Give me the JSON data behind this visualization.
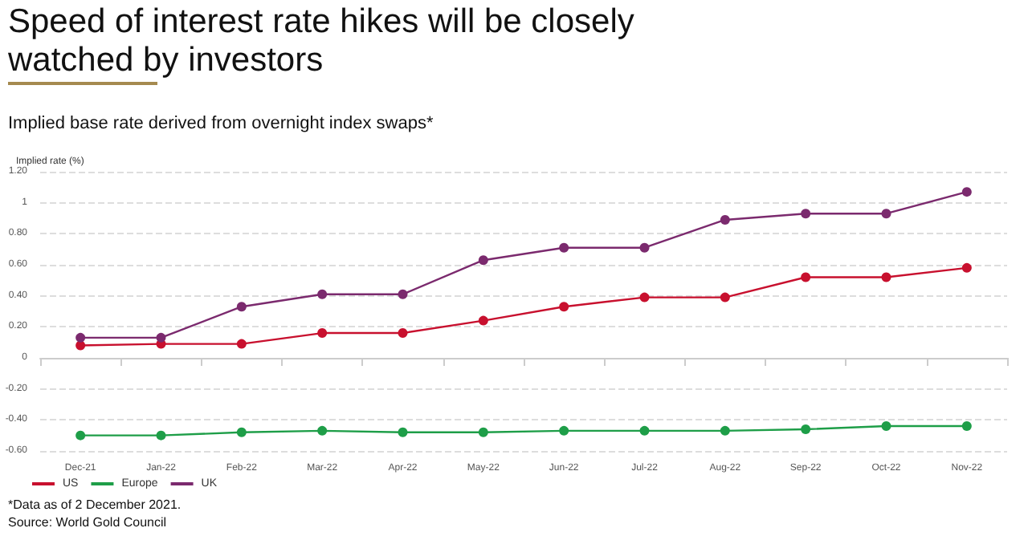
{
  "chart_data": {
    "type": "line",
    "title": "Speed of interest rate hikes will be closely watched by investors",
    "subtitle": "Implied base rate derived from overnight index swaps*",
    "ylabel": "Implied rate (%)",
    "categories": [
      "Dec-21",
      "Jan-22",
      "Feb-22",
      "Mar-22",
      "Apr-22",
      "May-22",
      "Jun-22",
      "Jul-22",
      "Aug-22",
      "Sep-22",
      "Oct-22",
      "Nov-22"
    ],
    "series": [
      {
        "name": "US",
        "color": "#c8102e",
        "values": [
          0.08,
          0.09,
          0.09,
          0.16,
          0.16,
          0.24,
          0.33,
          0.39,
          0.39,
          0.52,
          0.52,
          0.58
        ]
      },
      {
        "name": "Europe",
        "color": "#1e9e48",
        "values": [
          -0.5,
          -0.5,
          -0.48,
          -0.47,
          -0.48,
          -0.48,
          -0.47,
          -0.47,
          -0.47,
          -0.46,
          -0.44,
          -0.44
        ]
      },
      {
        "name": "UK",
        "color": "#7b2a6e",
        "values": [
          0.13,
          0.13,
          0.33,
          0.41,
          0.41,
          0.63,
          0.71,
          0.71,
          0.89,
          0.93,
          0.93,
          1.07
        ]
      }
    ],
    "ylim": [
      -0.6,
      1.2
    ],
    "yticks": [
      {
        "value": -0.6,
        "label": "-0.60"
      },
      {
        "value": -0.4,
        "label": "-0.40"
      },
      {
        "value": -0.2,
        "label": "-0.20"
      },
      0,
      {
        "value": 0.2,
        "label": "0.20"
      },
      {
        "value": 0.4,
        "label": "0.40"
      },
      {
        "value": 0.6,
        "label": "0.60"
      },
      {
        "value": 0.8,
        "label": "0.80"
      },
      1,
      {
        "value": 1.2,
        "label": "1.20"
      }
    ],
    "grid": "y",
    "legend": "bottom left",
    "marker": "circle",
    "line_style": "solid",
    "annotations": [
      "*Data as of 2 December 2021.",
      "Source: World Gold Council"
    ]
  }
}
